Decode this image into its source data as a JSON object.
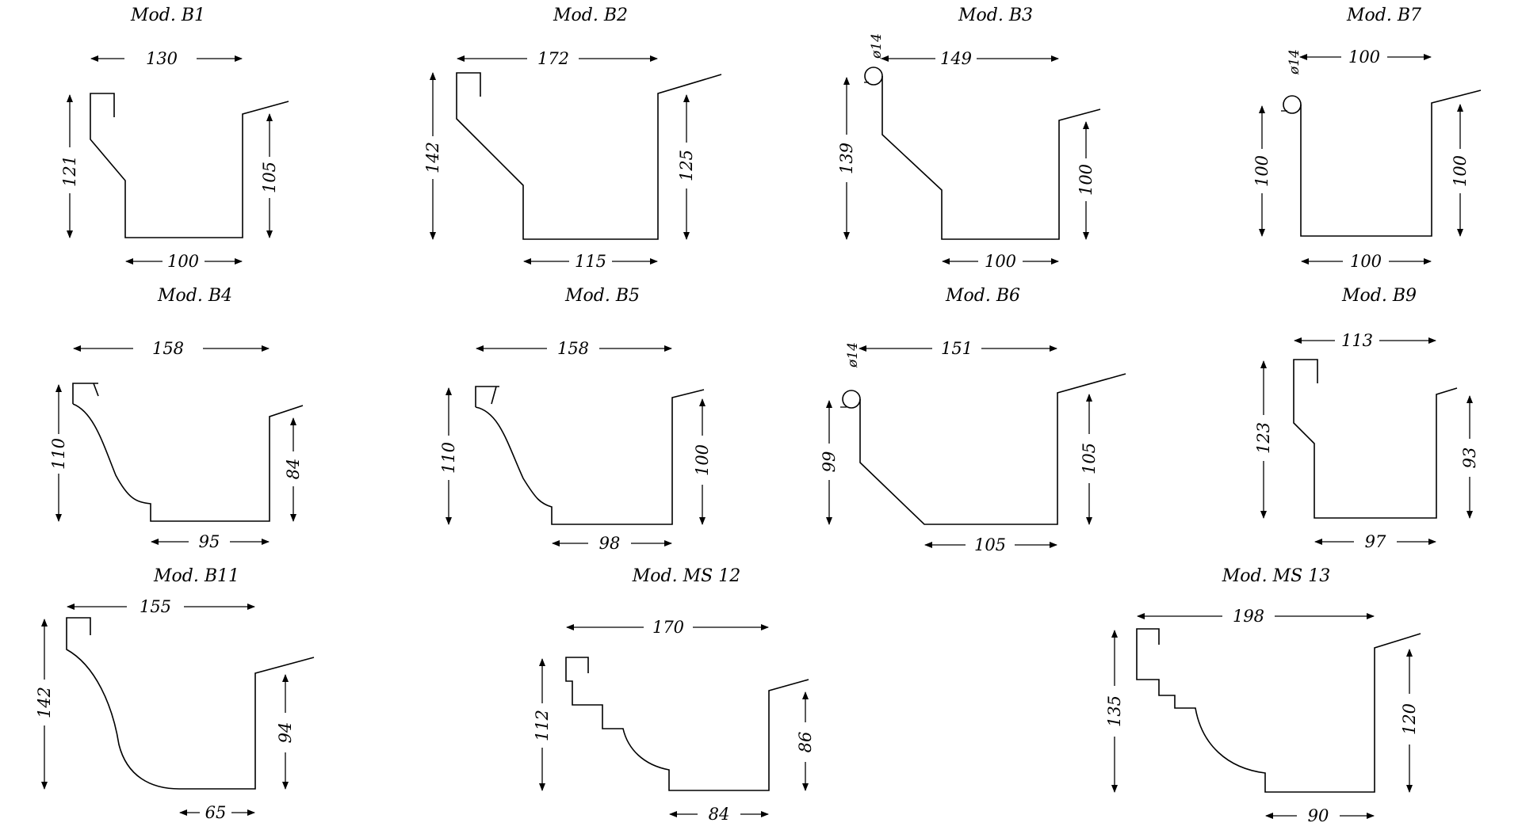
{
  "profiles": {
    "b1": {
      "title": "Mod. B1",
      "top": "130",
      "left": "121",
      "right": "105",
      "bottom": "100"
    },
    "b2": {
      "title": "Mod. B2",
      "top": "172",
      "left": "142",
      "right": "125",
      "bottom": "115"
    },
    "b3": {
      "title": "Mod. B3",
      "top": "149",
      "left": "139",
      "right": "100",
      "bottom": "100",
      "pipe": "ø14"
    },
    "b7": {
      "title": "Mod. B7",
      "top": "100",
      "left": "100",
      "right": "100",
      "bottom": "100",
      "pipe": "ø14"
    },
    "b4": {
      "title": "Mod. B4",
      "top": "158",
      "left": "110",
      "right": "84",
      "bottom": "95"
    },
    "b5": {
      "title": "Mod. B5",
      "top": "158",
      "left": "110",
      "right": "100",
      "bottom": "98"
    },
    "b6": {
      "title": "Mod. B6",
      "top": "151",
      "left": "99",
      "right": "105",
      "bottom": "105",
      "pipe": "ø14"
    },
    "b9": {
      "title": "Mod. B9",
      "top": "113",
      "left": "123",
      "right": "93",
      "bottom": "97"
    },
    "b11": {
      "title": "Mod. B11",
      "top": "155",
      "left": "142",
      "right": "94",
      "bottom": "65"
    },
    "ms12": {
      "title": "Mod. MS 12",
      "top": "170",
      "left": "112",
      "right": "86",
      "bottom": "84"
    },
    "ms13": {
      "title": "Mod. MS 13",
      "top": "198",
      "left": "135",
      "right": "120",
      "bottom": "90"
    }
  }
}
